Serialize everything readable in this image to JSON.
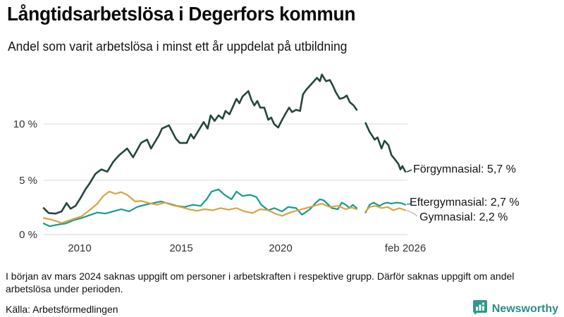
{
  "header": {
    "title": "Långtidsarbetslösa i Degerfors kommun",
    "subtitle": "Andel som varit arbetslösa i minst ett år uppdelat på utbildning"
  },
  "chart_data": {
    "type": "line",
    "title": "Långtidsarbetslösa i Degerfors kommun",
    "subtitle": "Andel som varit arbetslösa i minst ett år uppdelat på utbildning",
    "unit": "%",
    "grid": true,
    "legend_position": "right-of-line-ends",
    "x_axis": {
      "domain": [
        2008.1,
        2026.3
      ],
      "ticks": [
        {
          "year": 2010,
          "label": "2010"
        },
        {
          "year": 2015,
          "label": "2015"
        },
        {
          "year": 2020,
          "label": "2020"
        },
        {
          "year": 2026.1,
          "label": "feb 2026"
        }
      ]
    },
    "y_axis": {
      "domain": [
        0,
        15
      ],
      "ticks": [
        {
          "value": 0,
          "label": "0 %"
        },
        {
          "value": 5,
          "label": "5 %"
        },
        {
          "value": 10,
          "label": "10 %"
        }
      ]
    },
    "data_gap": {
      "from": 2023.85,
      "to": 2024.3,
      "reason": "saknas uppgift mars 2024"
    },
    "series": [
      {
        "id": "forgymnasial",
        "name": "Förgymnasial",
        "last_value": "5,7 %",
        "legend_label": "Förgymnasial: 5,7 %",
        "color": "#25463f",
        "segments": [
          [
            [
              2008.1,
              2.4
            ],
            [
              2008.35,
              1.95
            ],
            [
              2008.7,
              1.9
            ],
            [
              2009.0,
              2.1
            ],
            [
              2009.25,
              2.85
            ],
            [
              2009.45,
              2.35
            ],
            [
              2009.7,
              2.6
            ],
            [
              2009.95,
              3.3
            ],
            [
              2010.2,
              4.1
            ],
            [
              2010.4,
              4.6
            ],
            [
              2010.7,
              5.5
            ],
            [
              2011.0,
              5.9
            ],
            [
              2011.3,
              5.7
            ],
            [
              2011.6,
              6.6
            ],
            [
              2011.9,
              7.2
            ],
            [
              2012.3,
              7.8
            ],
            [
              2012.6,
              7.0
            ],
            [
              2013.0,
              8.3
            ],
            [
              2013.3,
              8.6
            ],
            [
              2013.5,
              7.8
            ],
            [
              2013.9,
              9.0
            ],
            [
              2014.05,
              9.6
            ],
            [
              2014.4,
              9.9
            ],
            [
              2014.75,
              8.7
            ],
            [
              2014.95,
              8.3
            ],
            [
              2015.3,
              8.3
            ],
            [
              2015.5,
              9.1
            ],
            [
              2015.65,
              8.7
            ],
            [
              2015.85,
              9.3
            ],
            [
              2016.15,
              10.2
            ],
            [
              2016.35,
              9.6
            ],
            [
              2016.5,
              10.8
            ],
            [
              2016.7,
              10.3
            ],
            [
              2016.9,
              10.8
            ],
            [
              2017.1,
              10.5
            ],
            [
              2017.25,
              11.2
            ],
            [
              2017.45,
              10.9
            ],
            [
              2017.6,
              11.5
            ],
            [
              2017.8,
              12.3
            ],
            [
              2017.95,
              11.9
            ],
            [
              2018.1,
              12.5
            ],
            [
              2018.4,
              13.0
            ],
            [
              2018.55,
              12.2
            ],
            [
              2018.7,
              11.7
            ],
            [
              2018.85,
              12.1
            ],
            [
              2019.0,
              11.5
            ],
            [
              2019.2,
              11.5
            ],
            [
              2019.4,
              10.4
            ],
            [
              2019.55,
              10.6
            ],
            [
              2019.7,
              10.0
            ],
            [
              2019.9,
              9.7
            ],
            [
              2020.1,
              10.4
            ],
            [
              2020.25,
              10.9
            ],
            [
              2020.45,
              11.5
            ],
            [
              2020.6,
              11.1
            ],
            [
              2020.8,
              11.3
            ],
            [
              2021.0,
              11.2
            ],
            [
              2021.15,
              12.7
            ],
            [
              2021.3,
              13.1
            ],
            [
              2021.5,
              13.5
            ],
            [
              2021.7,
              13.9
            ],
            [
              2021.85,
              14.2
            ],
            [
              2022.0,
              13.9
            ],
            [
              2022.1,
              14.5
            ],
            [
              2022.3,
              13.9
            ],
            [
              2022.5,
              14.0
            ],
            [
              2022.65,
              13.5
            ],
            [
              2022.8,
              12.9
            ],
            [
              2023.0,
              12.3
            ],
            [
              2023.2,
              12.4
            ],
            [
              2023.35,
              12.6
            ],
            [
              2023.5,
              12.0
            ],
            [
              2023.7,
              11.7
            ],
            [
              2023.85,
              11.3
            ]
          ],
          [
            [
              2024.3,
              10.1
            ],
            [
              2024.5,
              9.3
            ],
            [
              2024.65,
              8.9
            ],
            [
              2024.75,
              8.6
            ],
            [
              2024.9,
              8.8
            ],
            [
              2025.1,
              7.8
            ],
            [
              2025.25,
              8.5
            ],
            [
              2025.45,
              8.1
            ],
            [
              2025.6,
              7.2
            ],
            [
              2025.8,
              6.75
            ],
            [
              2025.95,
              6.4
            ],
            [
              2026.05,
              5.9
            ],
            [
              2026.15,
              6.2
            ],
            [
              2026.3,
              5.7
            ]
          ]
        ]
      },
      {
        "id": "eftergymnasial",
        "name": "Eftergymnasial",
        "last_value": "2,7 %",
        "legend_label": "Eftergymnasial: 2,7 %",
        "color": "#169c8a",
        "segments": [
          [
            [
              2008.1,
              1.0
            ],
            [
              2008.4,
              0.75
            ],
            [
              2008.8,
              0.9
            ],
            [
              2009.2,
              1.0
            ],
            [
              2009.6,
              1.3
            ],
            [
              2010.0,
              1.5
            ],
            [
              2010.4,
              1.75
            ],
            [
              2010.8,
              2.0
            ],
            [
              2011.2,
              1.9
            ],
            [
              2011.6,
              2.1
            ],
            [
              2012.0,
              2.3
            ],
            [
              2012.4,
              2.1
            ],
            [
              2012.8,
              2.5
            ],
            [
              2013.2,
              2.7
            ],
            [
              2013.6,
              2.85
            ],
            [
              2014.0,
              3.0
            ],
            [
              2014.4,
              2.8
            ],
            [
              2014.8,
              2.6
            ],
            [
              2015.2,
              2.5
            ],
            [
              2015.6,
              2.7
            ],
            [
              2016.0,
              2.6
            ],
            [
              2016.3,
              3.2
            ],
            [
              2016.55,
              3.9
            ],
            [
              2016.9,
              4.1
            ],
            [
              2017.2,
              3.6
            ],
            [
              2017.55,
              3.2
            ],
            [
              2017.8,
              3.9
            ],
            [
              2018.1,
              3.5
            ],
            [
              2018.5,
              3.6
            ],
            [
              2018.8,
              3.4
            ],
            [
              2019.05,
              2.7
            ],
            [
              2019.4,
              2.2
            ],
            [
              2019.7,
              2.4
            ],
            [
              2020.1,
              2.1
            ],
            [
              2020.4,
              2.5
            ],
            [
              2020.8,
              2.4
            ],
            [
              2021.1,
              1.8
            ],
            [
              2021.5,
              2.3
            ],
            [
              2021.8,
              2.9
            ],
            [
              2022.0,
              3.2
            ],
            [
              2022.2,
              3.1
            ],
            [
              2022.6,
              2.4
            ],
            [
              2022.9,
              2.3
            ],
            [
              2023.1,
              2.9
            ],
            [
              2023.3,
              2.7
            ],
            [
              2023.5,
              2.4
            ],
            [
              2023.65,
              2.7
            ],
            [
              2023.85,
              2.4
            ]
          ],
          [
            [
              2024.3,
              2.0
            ],
            [
              2024.5,
              2.7
            ],
            [
              2024.7,
              2.9
            ],
            [
              2025.0,
              2.6
            ],
            [
              2025.2,
              2.8
            ],
            [
              2025.4,
              2.9
            ],
            [
              2025.6,
              2.8
            ],
            [
              2025.85,
              2.9
            ],
            [
              2026.1,
              2.85
            ],
            [
              2026.3,
              2.7
            ]
          ]
        ]
      },
      {
        "id": "gymnasial",
        "name": "Gymnasial",
        "last_value": "2,2 %",
        "legend_label": "Gymnasial: 2,2 %",
        "color": "#d9a342",
        "segments": [
          [
            [
              2008.1,
              1.5
            ],
            [
              2008.5,
              1.35
            ],
            [
              2009.0,
              1.05
            ],
            [
              2009.5,
              1.35
            ],
            [
              2010.0,
              1.65
            ],
            [
              2010.4,
              2.2
            ],
            [
              2010.8,
              2.8
            ],
            [
              2011.1,
              3.5
            ],
            [
              2011.4,
              3.9
            ],
            [
              2011.7,
              3.7
            ],
            [
              2012.0,
              3.85
            ],
            [
              2012.3,
              3.6
            ],
            [
              2012.7,
              3.0
            ],
            [
              2013.0,
              3.05
            ],
            [
              2013.4,
              2.85
            ],
            [
              2013.8,
              2.7
            ],
            [
              2014.2,
              2.9
            ],
            [
              2014.6,
              2.65
            ],
            [
              2015.0,
              2.5
            ],
            [
              2015.4,
              2.3
            ],
            [
              2015.8,
              2.15
            ],
            [
              2016.2,
              2.3
            ],
            [
              2016.6,
              2.2
            ],
            [
              2017.0,
              2.4
            ],
            [
              2017.4,
              2.25
            ],
            [
              2017.8,
              2.4
            ],
            [
              2018.2,
              2.1
            ],
            [
              2018.6,
              1.95
            ],
            [
              2019.0,
              2.3
            ],
            [
              2019.4,
              2.2
            ],
            [
              2019.8,
              1.85
            ],
            [
              2020.1,
              1.7
            ],
            [
              2020.5,
              2.0
            ],
            [
              2020.9,
              2.2
            ],
            [
              2021.3,
              2.4
            ],
            [
              2021.7,
              2.6
            ],
            [
              2022.1,
              2.8
            ],
            [
              2022.5,
              2.5
            ],
            [
              2022.9,
              2.6
            ],
            [
              2023.3,
              2.3
            ],
            [
              2023.6,
              2.45
            ],
            [
              2023.85,
              2.3
            ]
          ],
          [
            [
              2024.3,
              2.1
            ],
            [
              2024.5,
              2.5
            ],
            [
              2024.8,
              2.6
            ],
            [
              2025.1,
              2.4
            ],
            [
              2025.4,
              2.5
            ],
            [
              2025.7,
              2.2
            ],
            [
              2026.0,
              2.4
            ],
            [
              2026.3,
              2.2
            ]
          ]
        ]
      }
    ]
  },
  "footer": {
    "note": "I början av mars 2024 saknas uppgift om personer i arbetskraften i respektive grupp. Därför saknas uppgift om andel arbetslösa under perioden.",
    "source": "Källa: Arbetsförmedlingen",
    "brand": "Newsworthy",
    "brand_color": "#2b8e86"
  }
}
